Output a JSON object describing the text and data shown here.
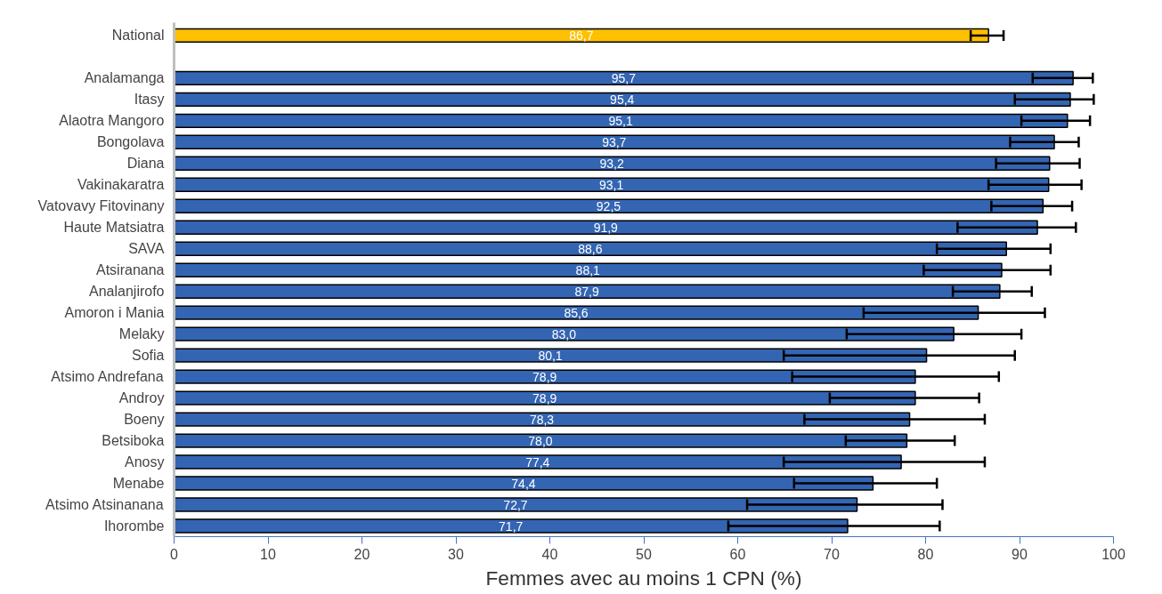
{
  "chart_data": {
    "type": "bar",
    "orientation": "horizontal",
    "xlabel": "Femmes avec au moins 1 CPN (%)",
    "categories": [
      "National",
      null,
      "Analamanga",
      "Itasy",
      "Alaotra Mangoro",
      "Bongolava",
      "Diana",
      "Vakinakaratra",
      "Vatovavy Fitovinany",
      "Haute Matsiatra",
      "SAVA",
      "Atsiranana",
      "Analanjirofo",
      "Amoron i Mania",
      "Melaky",
      "Sofia",
      "Atsimo Andrefana",
      "Androy",
      "Boeny",
      "Betsiboka",
      "Anosy",
      "Menabe",
      "Atsimo Atsinanana",
      "Ihorombe"
    ],
    "values": [
      86.7,
      null,
      95.7,
      95.4,
      95.1,
      93.7,
      93.2,
      93.1,
      92.5,
      91.9,
      88.6,
      88.1,
      87.9,
      85.6,
      83.0,
      80.1,
      78.9,
      78.9,
      78.3,
      78.0,
      77.4,
      74.4,
      72.7,
      71.7
    ],
    "value_labels": [
      "86,7",
      null,
      "95,7",
      "95,4",
      "95,1",
      "93,7",
      "93,2",
      "93,1",
      "92,5",
      "91,9",
      "88,6",
      "88,1",
      "87,9",
      "85,6",
      "83,0",
      "80,1",
      "78,9",
      "78,9",
      "78,3",
      "78,0",
      "77,4",
      "74,4",
      "72,7",
      "71,7"
    ],
    "errors": [
      [
        84.8,
        88.3
      ],
      null,
      [
        91.4,
        97.8
      ],
      [
        89.5,
        97.9
      ],
      [
        90.2,
        97.5
      ],
      [
        89.0,
        96.3
      ],
      [
        87.5,
        96.4
      ],
      [
        86.7,
        96.6
      ],
      [
        87.0,
        95.6
      ],
      [
        83.4,
        96.0
      ],
      [
        81.2,
        93.3
      ],
      [
        79.8,
        93.3
      ],
      [
        82.9,
        91.3
      ],
      [
        73.4,
        92.7
      ],
      [
        71.6,
        90.2
      ],
      [
        64.9,
        89.5
      ],
      [
        65.8,
        87.8
      ],
      [
        69.8,
        85.7
      ],
      [
        67.1,
        86.3
      ],
      [
        71.5,
        83.1
      ],
      [
        64.9,
        86.3
      ],
      [
        66.0,
        81.2
      ],
      [
        61.0,
        81.8
      ],
      [
        59.0,
        81.5
      ]
    ],
    "colors": [
      "#ffc000",
      null,
      "#3465b3",
      "#3465b3",
      "#3465b3",
      "#3465b3",
      "#3465b3",
      "#3465b3",
      "#3465b3",
      "#3465b3",
      "#3465b3",
      "#3465b3",
      "#3465b3",
      "#3465b3",
      "#3465b3",
      "#3465b3",
      "#3465b3",
      "#3465b3",
      "#3465b3",
      "#3465b3",
      "#3465b3",
      "#3465b3",
      "#3465b3",
      "#3465b3"
    ],
    "xlim": [
      0,
      100
    ],
    "xticks": [
      0,
      10,
      20,
      30,
      40,
      50,
      60,
      70,
      80,
      90,
      100
    ],
    "grid": false
  }
}
